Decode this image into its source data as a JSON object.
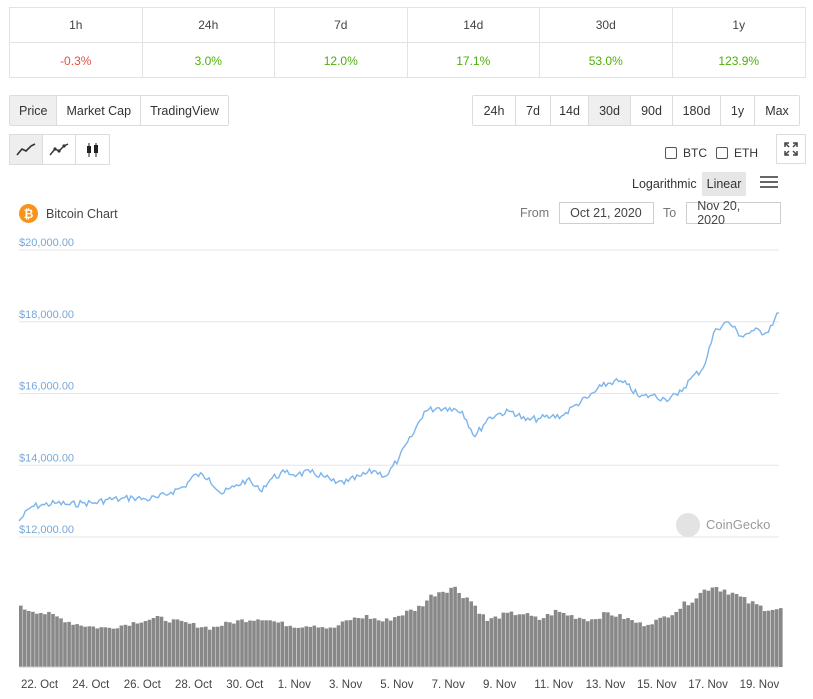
{
  "change_table": {
    "headers": [
      "1h",
      "24h",
      "7d",
      "14d",
      "30d",
      "1y"
    ],
    "values": [
      "-0.3%",
      "3.0%",
      "12.0%",
      "17.1%",
      "53.0%",
      "123.9%"
    ],
    "value_colors": [
      "#e15241",
      "#4eaf0a",
      "#4eaf0a",
      "#4eaf0a",
      "#4eaf0a",
      "#4eaf0a"
    ]
  },
  "view_tabs": [
    "Price",
    "Market Cap",
    "TradingView"
  ],
  "view_tabs_active": "Price",
  "range_tabs": [
    "24h",
    "7d",
    "14d",
    "30d",
    "90d",
    "180d",
    "1y",
    "Max"
  ],
  "range_tabs_active": "30d",
  "chart_type_icons": [
    "line-chart-icon",
    "point-line-chart-icon",
    "candlestick-icon"
  ],
  "compare": {
    "btc": "BTC",
    "eth": "ETH"
  },
  "scale": {
    "log": "Logarithmic",
    "linear": "Linear",
    "active": "Linear"
  },
  "chart_title": "Bitcoin Chart",
  "btc_logo_symbol": "₿",
  "date_range": {
    "from_label": "From",
    "from_value": "Oct 21, 2020",
    "to_label": "To",
    "to_value": "Nov 20, 2020"
  },
  "watermark": "CoinGecko",
  "colors": {
    "line": "#7cb5ec",
    "volume": "#888888",
    "grid": "#e6e6e6",
    "axis_label": "#78a7d8"
  },
  "chart_data": {
    "type": "line",
    "title": "",
    "ylabel": "",
    "xlabel": "",
    "ylim": [
      12000,
      20000
    ],
    "y_ticks": [
      "$20,000.00",
      "$18,000.00",
      "$16,000.00",
      "$14,000.00",
      "$12,000.00"
    ],
    "y_tick_values": [
      20000,
      18000,
      16000,
      14000,
      12000
    ],
    "x_ticks": [
      "22. Oct",
      "24. Oct",
      "26. Oct",
      "28. Oct",
      "30. Oct",
      "1. Nov",
      "3. Nov",
      "5. Nov",
      "7. Nov",
      "9. Nov",
      "11. Nov",
      "13. Nov",
      "15. Nov",
      "17. Nov",
      "19. Nov"
    ],
    "x_start": "2020-10-21",
    "x_end": "2020-11-20",
    "series": [
      {
        "values": [
          [
            "2020-10-21",
            12450
          ],
          [
            "2020-10-21.5",
            12850
          ],
          [
            "2020-10-22",
            12900
          ],
          [
            "2020-10-22.5",
            12950
          ],
          [
            "2020-10-23",
            12900
          ],
          [
            "2020-10-23.5",
            12950
          ],
          [
            "2020-10-24",
            12950
          ],
          [
            "2020-10-24.5",
            13050
          ],
          [
            "2020-10-25",
            13050
          ],
          [
            "2020-10-25.5",
            13100
          ],
          [
            "2020-10-26",
            13050
          ],
          [
            "2020-10-26.5",
            13100
          ],
          [
            "2020-10-27",
            13250
          ],
          [
            "2020-10-27.5",
            13400
          ],
          [
            "2020-10-28",
            13750
          ],
          [
            "2020-10-28.5",
            13650
          ],
          [
            "2020-10-29",
            13200
          ],
          [
            "2020-10-29.5",
            13400
          ],
          [
            "2020-10-30",
            13600
          ],
          [
            "2020-10-30.5",
            13300
          ],
          [
            "2020-10-31",
            13650
          ],
          [
            "2020-10-31.5",
            13800
          ],
          [
            "2020-11-01",
            13750
          ],
          [
            "2020-11-01.5",
            13800
          ],
          [
            "2020-11-02",
            13700
          ],
          [
            "2020-11-02.5",
            13500
          ],
          [
            "2020-11-03",
            13550
          ],
          [
            "2020-11-03.5",
            13700
          ],
          [
            "2020-11-04",
            13850
          ],
          [
            "2020-11-04.5",
            13700
          ],
          [
            "2020-11-05",
            14200
          ],
          [
            "2020-11-05.5",
            14800
          ],
          [
            "2020-11-06",
            15500
          ],
          [
            "2020-11-06.5",
            15600
          ],
          [
            "2020-11-07",
            15600
          ],
          [
            "2020-11-07.5",
            15500
          ],
          [
            "2020-11-08",
            14800
          ],
          [
            "2020-11-08.5",
            15300
          ],
          [
            "2020-11-09",
            15450
          ],
          [
            "2020-11-09.5",
            15500
          ],
          [
            "2020-11-10",
            15250
          ],
          [
            "2020-11-10.5",
            15300
          ],
          [
            "2020-11-11",
            15350
          ],
          [
            "2020-11-11.5",
            15400
          ],
          [
            "2020-11-12",
            15700
          ],
          [
            "2020-11-12.5",
            15900
          ],
          [
            "2020-11-13",
            16200
          ],
          [
            "2020-11-13.5",
            16350
          ],
          [
            "2020-11-14",
            16250
          ],
          [
            "2020-11-14.5",
            15900
          ],
          [
            "2020-11-15",
            15950
          ],
          [
            "2020-11-15.5",
            15850
          ],
          [
            "2020-11-16",
            15950
          ],
          [
            "2020-11-16.5",
            16400
          ],
          [
            "2020-11-17",
            16700
          ],
          [
            "2020-11-17.5",
            17800
          ],
          [
            "2020-11-18",
            18000
          ],
          [
            "2020-11-18.5",
            17600
          ],
          [
            "2020-11-19",
            17750
          ],
          [
            "2020-11-19.5",
            17700
          ],
          [
            "2020-11-20",
            18250
          ]
        ]
      }
    ]
  }
}
